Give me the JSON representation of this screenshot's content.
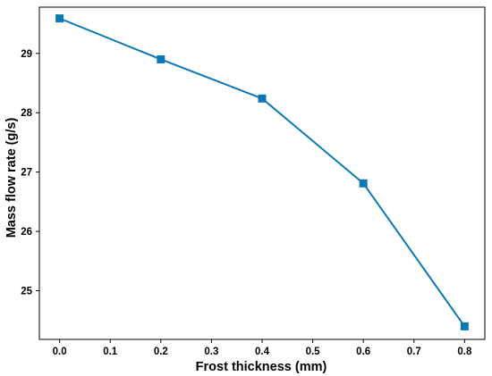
{
  "chart_data": {
    "type": "line",
    "title": "",
    "xlabel": "Frost thickness (mm)",
    "ylabel": "Mass flow rate (g/s)",
    "xlim": [
      -0.04,
      0.84
    ],
    "ylim": [
      24.18,
      29.78
    ],
    "x_ticks": [
      "0.0",
      "0.1",
      "0.2",
      "0.3",
      "0.4",
      "0.5",
      "0.6",
      "0.7",
      "0.8"
    ],
    "y_ticks": [
      "25",
      "26",
      "27",
      "28",
      "29"
    ],
    "grid": false,
    "legend": "none",
    "series": [
      {
        "x": [
          0.0,
          0.2,
          0.4,
          0.6,
          0.8
        ],
        "y": [
          29.59,
          28.9,
          28.24,
          26.81,
          24.4
        ],
        "color": "#0a78b4",
        "marker": "square"
      }
    ]
  }
}
